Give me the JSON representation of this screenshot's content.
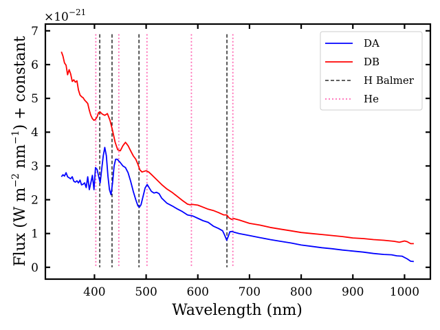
{
  "chart_data": {
    "type": "line",
    "title": "",
    "xlabel": "Wavelength (nm)",
    "ylabel": "Flux (W m⁻² nm⁻¹) + constant",
    "ylabel_parts": {
      "main": "Flux (W m",
      "sup1": "−2",
      "mid": " nm",
      "sup2": "−1",
      "end": ") + constant"
    },
    "y_offset_label": {
      "base": "×10",
      "exp": "−21"
    },
    "xlim": [
      305,
      1050
    ],
    "ylim": [
      -0.35,
      7.2
    ],
    "xticks": [
      400,
      500,
      600,
      700,
      800,
      900,
      1000
    ],
    "xtick_labels": [
      "400",
      "500",
      "600",
      "700",
      "800",
      "900",
      "1000"
    ],
    "yticks": [
      0,
      1,
      2,
      3,
      4,
      5,
      6,
      7
    ],
    "ytick_labels": [
      "0",
      "1",
      "2",
      "3",
      "4",
      "5",
      "6",
      "7"
    ],
    "grid": false,
    "legend_position": "top-right",
    "series": [
      {
        "name": "DA",
        "color": "#0000ff",
        "style": "solid",
        "x": [
          336,
          339,
          342,
          345,
          348,
          351,
          354,
          357,
          360,
          363,
          366,
          369,
          372,
          375,
          378,
          381,
          384,
          387,
          390,
          393,
          396,
          399,
          402,
          405,
          408,
          411,
          414,
          417,
          420,
          423,
          426,
          429,
          432,
          435,
          438,
          441,
          444,
          447,
          450,
          455,
          460,
          465,
          470,
          475,
          480,
          484,
          487,
          490,
          494,
          498,
          502,
          506,
          510,
          515,
          520,
          525,
          530,
          540,
          550,
          560,
          570,
          580,
          590,
          600,
          610,
          620,
          630,
          640,
          648,
          652,
          656,
          659,
          662,
          666,
          670,
          680,
          700,
          720,
          740,
          760,
          780,
          800,
          820,
          840,
          860,
          880,
          900,
          920,
          940,
          960,
          975,
          985,
          995,
          1005,
          1012,
          1018
        ],
        "values": [
          2.68,
          2.74,
          2.7,
          2.8,
          2.68,
          2.65,
          2.62,
          2.68,
          2.55,
          2.52,
          2.56,
          2.5,
          2.58,
          2.44,
          2.46,
          2.5,
          2.36,
          2.68,
          2.3,
          2.5,
          2.72,
          2.3,
          2.95,
          2.9,
          2.7,
          2.5,
          2.9,
          3.3,
          3.55,
          3.3,
          2.7,
          2.3,
          2.15,
          2.5,
          3.0,
          3.2,
          3.2,
          3.15,
          3.1,
          3.0,
          2.95,
          2.8,
          2.55,
          2.25,
          2.0,
          1.82,
          1.78,
          1.85,
          2.1,
          2.35,
          2.45,
          2.35,
          2.25,
          2.2,
          2.22,
          2.18,
          2.05,
          1.9,
          1.82,
          1.73,
          1.65,
          1.55,
          1.52,
          1.45,
          1.38,
          1.33,
          1.22,
          1.15,
          1.08,
          0.95,
          0.8,
          0.92,
          1.05,
          1.06,
          1.04,
          1.0,
          0.94,
          0.88,
          0.82,
          0.77,
          0.72,
          0.66,
          0.62,
          0.58,
          0.55,
          0.51,
          0.48,
          0.45,
          0.41,
          0.38,
          0.37,
          0.34,
          0.33,
          0.25,
          0.18,
          0.17
        ]
      },
      {
        "name": "DB",
        "color": "#ff0000",
        "style": "solid",
        "x": [
          336,
          339,
          342,
          345,
          348,
          351,
          354,
          357,
          360,
          363,
          366,
          369,
          372,
          375,
          378,
          381,
          384,
          387,
          390,
          393,
          396,
          399,
          402,
          405,
          408,
          411,
          414,
          417,
          420,
          425,
          430,
          435,
          440,
          445,
          450,
          455,
          460,
          465,
          470,
          475,
          480,
          484,
          488,
          492,
          496,
          500,
          505,
          510,
          520,
          530,
          540,
          550,
          560,
          570,
          580,
          585,
          590,
          600,
          610,
          620,
          630,
          640,
          650,
          656,
          660,
          665,
          670,
          680,
          700,
          720,
          740,
          760,
          780,
          800,
          820,
          840,
          860,
          880,
          900,
          920,
          940,
          960,
          980,
          990,
          1000,
          1005,
          1012,
          1018
        ],
        "values": [
          6.38,
          6.25,
          6.05,
          5.98,
          5.7,
          5.85,
          5.72,
          5.5,
          5.55,
          5.48,
          5.52,
          5.25,
          5.1,
          5.05,
          5.02,
          4.95,
          4.9,
          4.85,
          4.65,
          4.5,
          4.4,
          4.35,
          4.38,
          4.45,
          4.58,
          4.6,
          4.55,
          4.52,
          4.5,
          4.55,
          4.35,
          4.05,
          3.7,
          3.48,
          3.45,
          3.6,
          3.7,
          3.6,
          3.45,
          3.3,
          3.2,
          3.05,
          2.88,
          2.82,
          2.84,
          2.86,
          2.82,
          2.75,
          2.6,
          2.45,
          2.32,
          2.22,
          2.1,
          1.98,
          1.87,
          1.85,
          1.86,
          1.84,
          1.78,
          1.72,
          1.68,
          1.62,
          1.55,
          1.55,
          1.47,
          1.42,
          1.44,
          1.4,
          1.3,
          1.25,
          1.18,
          1.13,
          1.08,
          1.03,
          1.0,
          0.97,
          0.94,
          0.91,
          0.87,
          0.85,
          0.82,
          0.8,
          0.77,
          0.74,
          0.78,
          0.76,
          0.7,
          0.7
        ]
      }
    ],
    "reference_lines": [
      {
        "name": "H Balmer",
        "color": "#000000",
        "style": "dashed",
        "x": [
          410.2,
          434.0,
          486.1,
          656.3
        ]
      },
      {
        "name": "He",
        "color": "#ff69b4",
        "style": "dotted",
        "x": [
          402.6,
          447.1,
          501.6,
          587.6,
          667.8
        ]
      }
    ],
    "legend": [
      {
        "label": "DA",
        "color": "#0000ff",
        "style": "solid"
      },
      {
        "label": "DB",
        "color": "#ff0000",
        "style": "solid"
      },
      {
        "label": "H Balmer",
        "color": "#000000",
        "style": "dashed"
      },
      {
        "label": "He",
        "color": "#ff69b4",
        "style": "dotted"
      }
    ]
  }
}
